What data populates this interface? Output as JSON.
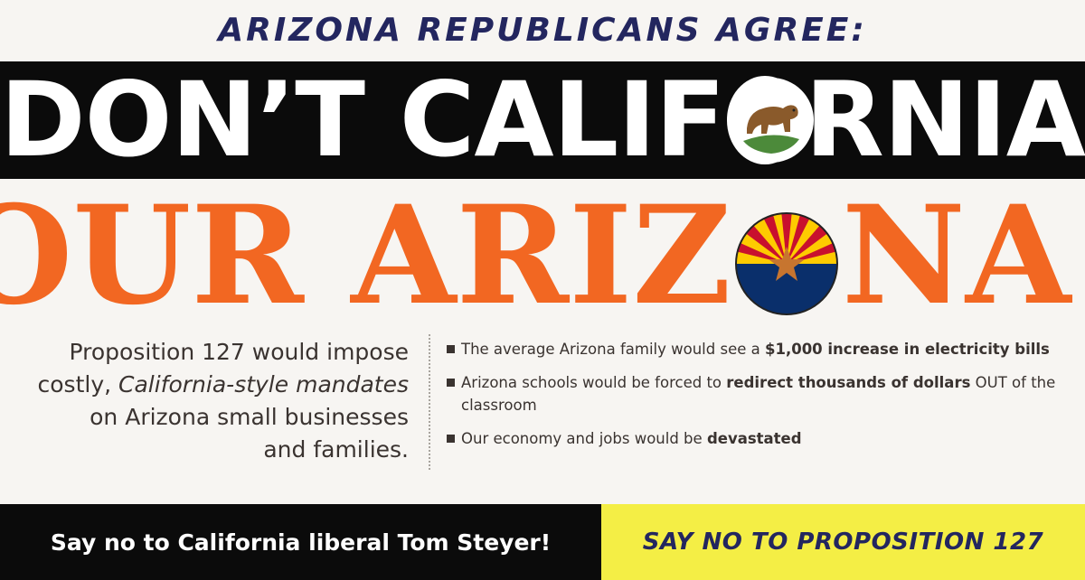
{
  "header": {
    "kicker": "ARIZONA REPUBLICANS AGREE:"
  },
  "headline": {
    "line1_part1": "DON’T CALIF",
    "line1_part2": "RNIA",
    "line2_part1": "OUR ARIZ",
    "line2_part2": "NA!"
  },
  "body": {
    "left_line1": "Proposition 127 would impose",
    "left_line2_prefix": "costly, ",
    "left_line2_italic": "California-style mandates",
    "left_line3": "on Arizona small businesses",
    "left_line4": "and families.",
    "bullets": [
      {
        "text": "The average Arizona family would see a ",
        "bold": "$1,000 increase in electricity bills",
        "after": ""
      },
      {
        "text": "Arizona schools would be forced to ",
        "bold": "redirect thousands of dollars",
        "after": " OUT of the classroom"
      },
      {
        "text": "Our economy and jobs would be ",
        "bold": "devastated",
        "after": ""
      }
    ]
  },
  "footer": {
    "left": "Say no to California liberal Tom Steyer!",
    "right": "SAY NO TO PROPOSITION 127"
  },
  "icons": {
    "california_seal": "california-bear-seal-icon",
    "arizona_seal": "arizona-flag-seal-icon",
    "bullet": "square-bullet-icon"
  },
  "colors": {
    "navy": "#23265f",
    "black": "#0b0b0b",
    "white": "#ffffff",
    "orange": "#f26722",
    "body_text": "#3a3330",
    "yellow": "#f4ee45",
    "az_red": "#c8102e",
    "az_yellow": "#fecb00",
    "az_blue": "#0a2f6b",
    "az_copper": "#c7752f",
    "bear_brown": "#8a5a2b",
    "grass_green": "#4c8a3a"
  }
}
